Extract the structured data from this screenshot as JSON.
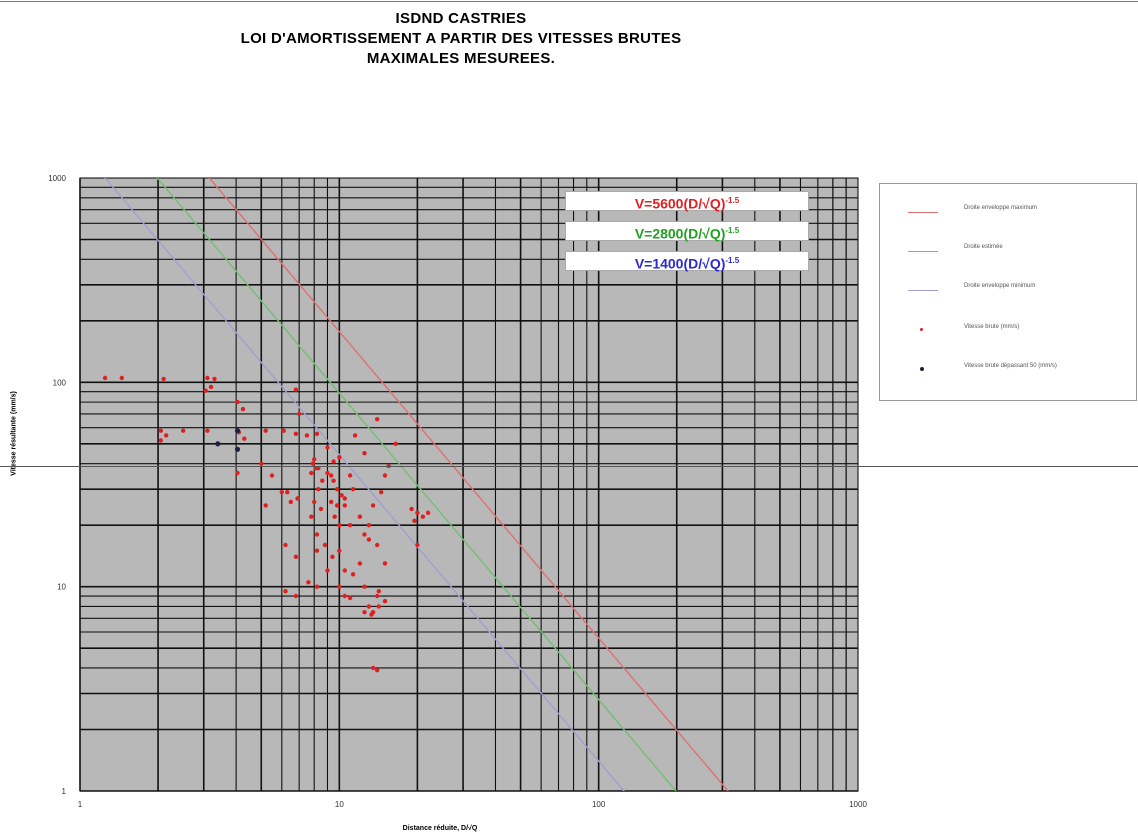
{
  "title": {
    "line1": "ISDND CASTRIES",
    "line2": "LOI D'AMORTISSEMENT A PARTIR DES VITESSES BRUTES",
    "line3": "MAXIMALES MESUREES."
  },
  "equations": {
    "red": {
      "text": "V=5600(D/√Q)",
      "exp": "-1.5",
      "color": "#e02020"
    },
    "green": {
      "text": "V=2800(D/√Q)",
      "exp": "-1.5",
      "color": "#22a022"
    },
    "blue": {
      "text": "V=1400(D/√Q)",
      "exp": "-1.5",
      "color": "#2a2ad0"
    }
  },
  "legend": [
    {
      "label": "Droite enveloppe maximum",
      "kind": "line",
      "color": "#e07070"
    },
    {
      "label": "Droite estimée",
      "kind": "line",
      "color": "#70c070"
    },
    {
      "label": "Droite enveloppe minimum",
      "kind": "line",
      "color": "#a0a0d0"
    },
    {
      "label": "Vitesse brute (mm/s)",
      "kind": "dot",
      "color": "#e02020"
    },
    {
      "label": "Vitesse brute dépassant 50 (mm/s)",
      "kind": "dot",
      "color": "#202040"
    }
  ],
  "colors": {
    "plot_bg": "#b8b8b8",
    "grid": "#000000",
    "red": "#e02020",
    "navy": "#202040"
  },
  "chart_data": {
    "type": "scatter",
    "title": "ISDND CASTRIES LOI D'AMORTISSEMENT A PARTIR DES VITESSES BRUTES MAXIMALES MESUREES.",
    "xlabel": "Distance réduite, D/√Q",
    "ylabel": "Vitesse résultante (mm/s)",
    "xscale": "log",
    "yscale": "log",
    "xlim": [
      1,
      1000
    ],
    "ylim": [
      1,
      1000
    ],
    "xticks": [
      "1",
      "10",
      "100",
      "1000"
    ],
    "yticks": [
      "1",
      "10",
      "100",
      "1000"
    ],
    "grid": true,
    "legend_position": "right",
    "lines": [
      {
        "coef": 5600,
        "exponent": -1.5,
        "color": "#e07070"
      },
      {
        "coef": 2800,
        "exponent": -1.5,
        "color": "#70c070"
      },
      {
        "coef": 1400,
        "exponent": -1.5,
        "color": "#a0a0d0"
      }
    ],
    "series": [
      {
        "name": "Vitesse brute (mm/s)",
        "color": "#e02020",
        "points": [
          [
            1.25,
            105
          ],
          [
            1.45,
            105
          ],
          [
            2.1,
            104
          ],
          [
            3.1,
            105
          ],
          [
            3.3,
            104
          ],
          [
            3.05,
            91
          ],
          [
            3.2,
            95
          ],
          [
            4.05,
            80
          ],
          [
            4.25,
            74
          ],
          [
            2.05,
            58
          ],
          [
            2.15,
            55
          ],
          [
            2.5,
            58
          ],
          [
            2.05,
            52
          ],
          [
            3.1,
            58
          ],
          [
            4.1,
            57
          ],
          [
            4.3,
            53
          ],
          [
            5.2,
            58
          ],
          [
            6.1,
            58
          ],
          [
            6.8,
            56
          ],
          [
            7.5,
            55
          ],
          [
            8.2,
            56
          ],
          [
            6.8,
            92
          ],
          [
            7.0,
            70
          ],
          [
            4.05,
            36
          ],
          [
            5.0,
            40
          ],
          [
            5.5,
            35
          ],
          [
            5.2,
            25
          ],
          [
            6.0,
            29
          ],
          [
            6.3,
            29
          ],
          [
            6.5,
            26
          ],
          [
            6.9,
            27
          ],
          [
            7.8,
            36
          ],
          [
            7.9,
            40
          ],
          [
            8.0,
            42
          ],
          [
            8.1,
            38
          ],
          [
            8.3,
            38
          ],
          [
            8.3,
            30
          ],
          [
            8.6,
            33
          ],
          [
            9.0,
            36
          ],
          [
            9.3,
            35
          ],
          [
            9.5,
            33
          ],
          [
            9.8,
            30
          ],
          [
            10.2,
            28
          ],
          [
            10.5,
            27
          ],
          [
            11.0,
            35
          ],
          [
            11.3,
            30
          ],
          [
            8.0,
            26
          ],
          [
            8.5,
            24
          ],
          [
            9.3,
            26
          ],
          [
            9.6,
            22
          ],
          [
            9.8,
            25
          ],
          [
            10.5,
            25
          ],
          [
            11.0,
            20
          ],
          [
            10.0,
            20
          ],
          [
            7.8,
            22
          ],
          [
            8.2,
            18
          ],
          [
            8.2,
            15
          ],
          [
            8.8,
            16
          ],
          [
            9.4,
            14
          ],
          [
            10.0,
            15
          ],
          [
            10.5,
            12
          ],
          [
            12.0,
            13
          ],
          [
            12.5,
            18
          ],
          [
            13.0,
            17
          ],
          [
            14.0,
            16
          ],
          [
            15.0,
            13
          ],
          [
            13.0,
            20
          ],
          [
            12.0,
            22
          ],
          [
            13.5,
            25
          ],
          [
            14.5,
            29
          ],
          [
            15.0,
            35
          ],
          [
            15.5,
            39
          ],
          [
            16.5,
            50
          ],
          [
            14.0,
            66
          ],
          [
            11.5,
            55
          ],
          [
            12.5,
            45
          ],
          [
            10.0,
            43
          ],
          [
            9.5,
            41
          ],
          [
            9.0,
            48
          ],
          [
            6.2,
            16
          ],
          [
            6.8,
            14
          ],
          [
            6.2,
            9.5
          ],
          [
            6.8,
            9.0
          ],
          [
            7.6,
            10.5
          ],
          [
            8.2,
            10.0
          ],
          [
            9.0,
            12.0
          ],
          [
            10.0,
            10.0
          ],
          [
            10.5,
            9.0
          ],
          [
            11.3,
            11.5
          ],
          [
            11.0,
            8.8
          ],
          [
            12.5,
            10.0
          ],
          [
            13.0,
            8.0
          ],
          [
            13.5,
            7.5
          ],
          [
            14.2,
            9.5
          ],
          [
            14.0,
            9.0
          ],
          [
            12.5,
            7.5
          ],
          [
            13.3,
            7.3
          ],
          [
            14.2,
            8.0
          ],
          [
            15.0,
            8.5
          ],
          [
            19.0,
            24
          ],
          [
            20.0,
            23
          ],
          [
            21.0,
            22
          ],
          [
            19.5,
            21
          ],
          [
            20.0,
            16
          ],
          [
            22.0,
            23
          ],
          [
            13.5,
            4.0
          ],
          [
            14.0,
            3.9
          ]
        ]
      },
      {
        "name": "Vitesse brute dépassant 50 (mm/s)",
        "color": "#202040",
        "points": [
          [
            3.4,
            50
          ],
          [
            4.05,
            58
          ],
          [
            4.05,
            47
          ]
        ]
      }
    ]
  }
}
